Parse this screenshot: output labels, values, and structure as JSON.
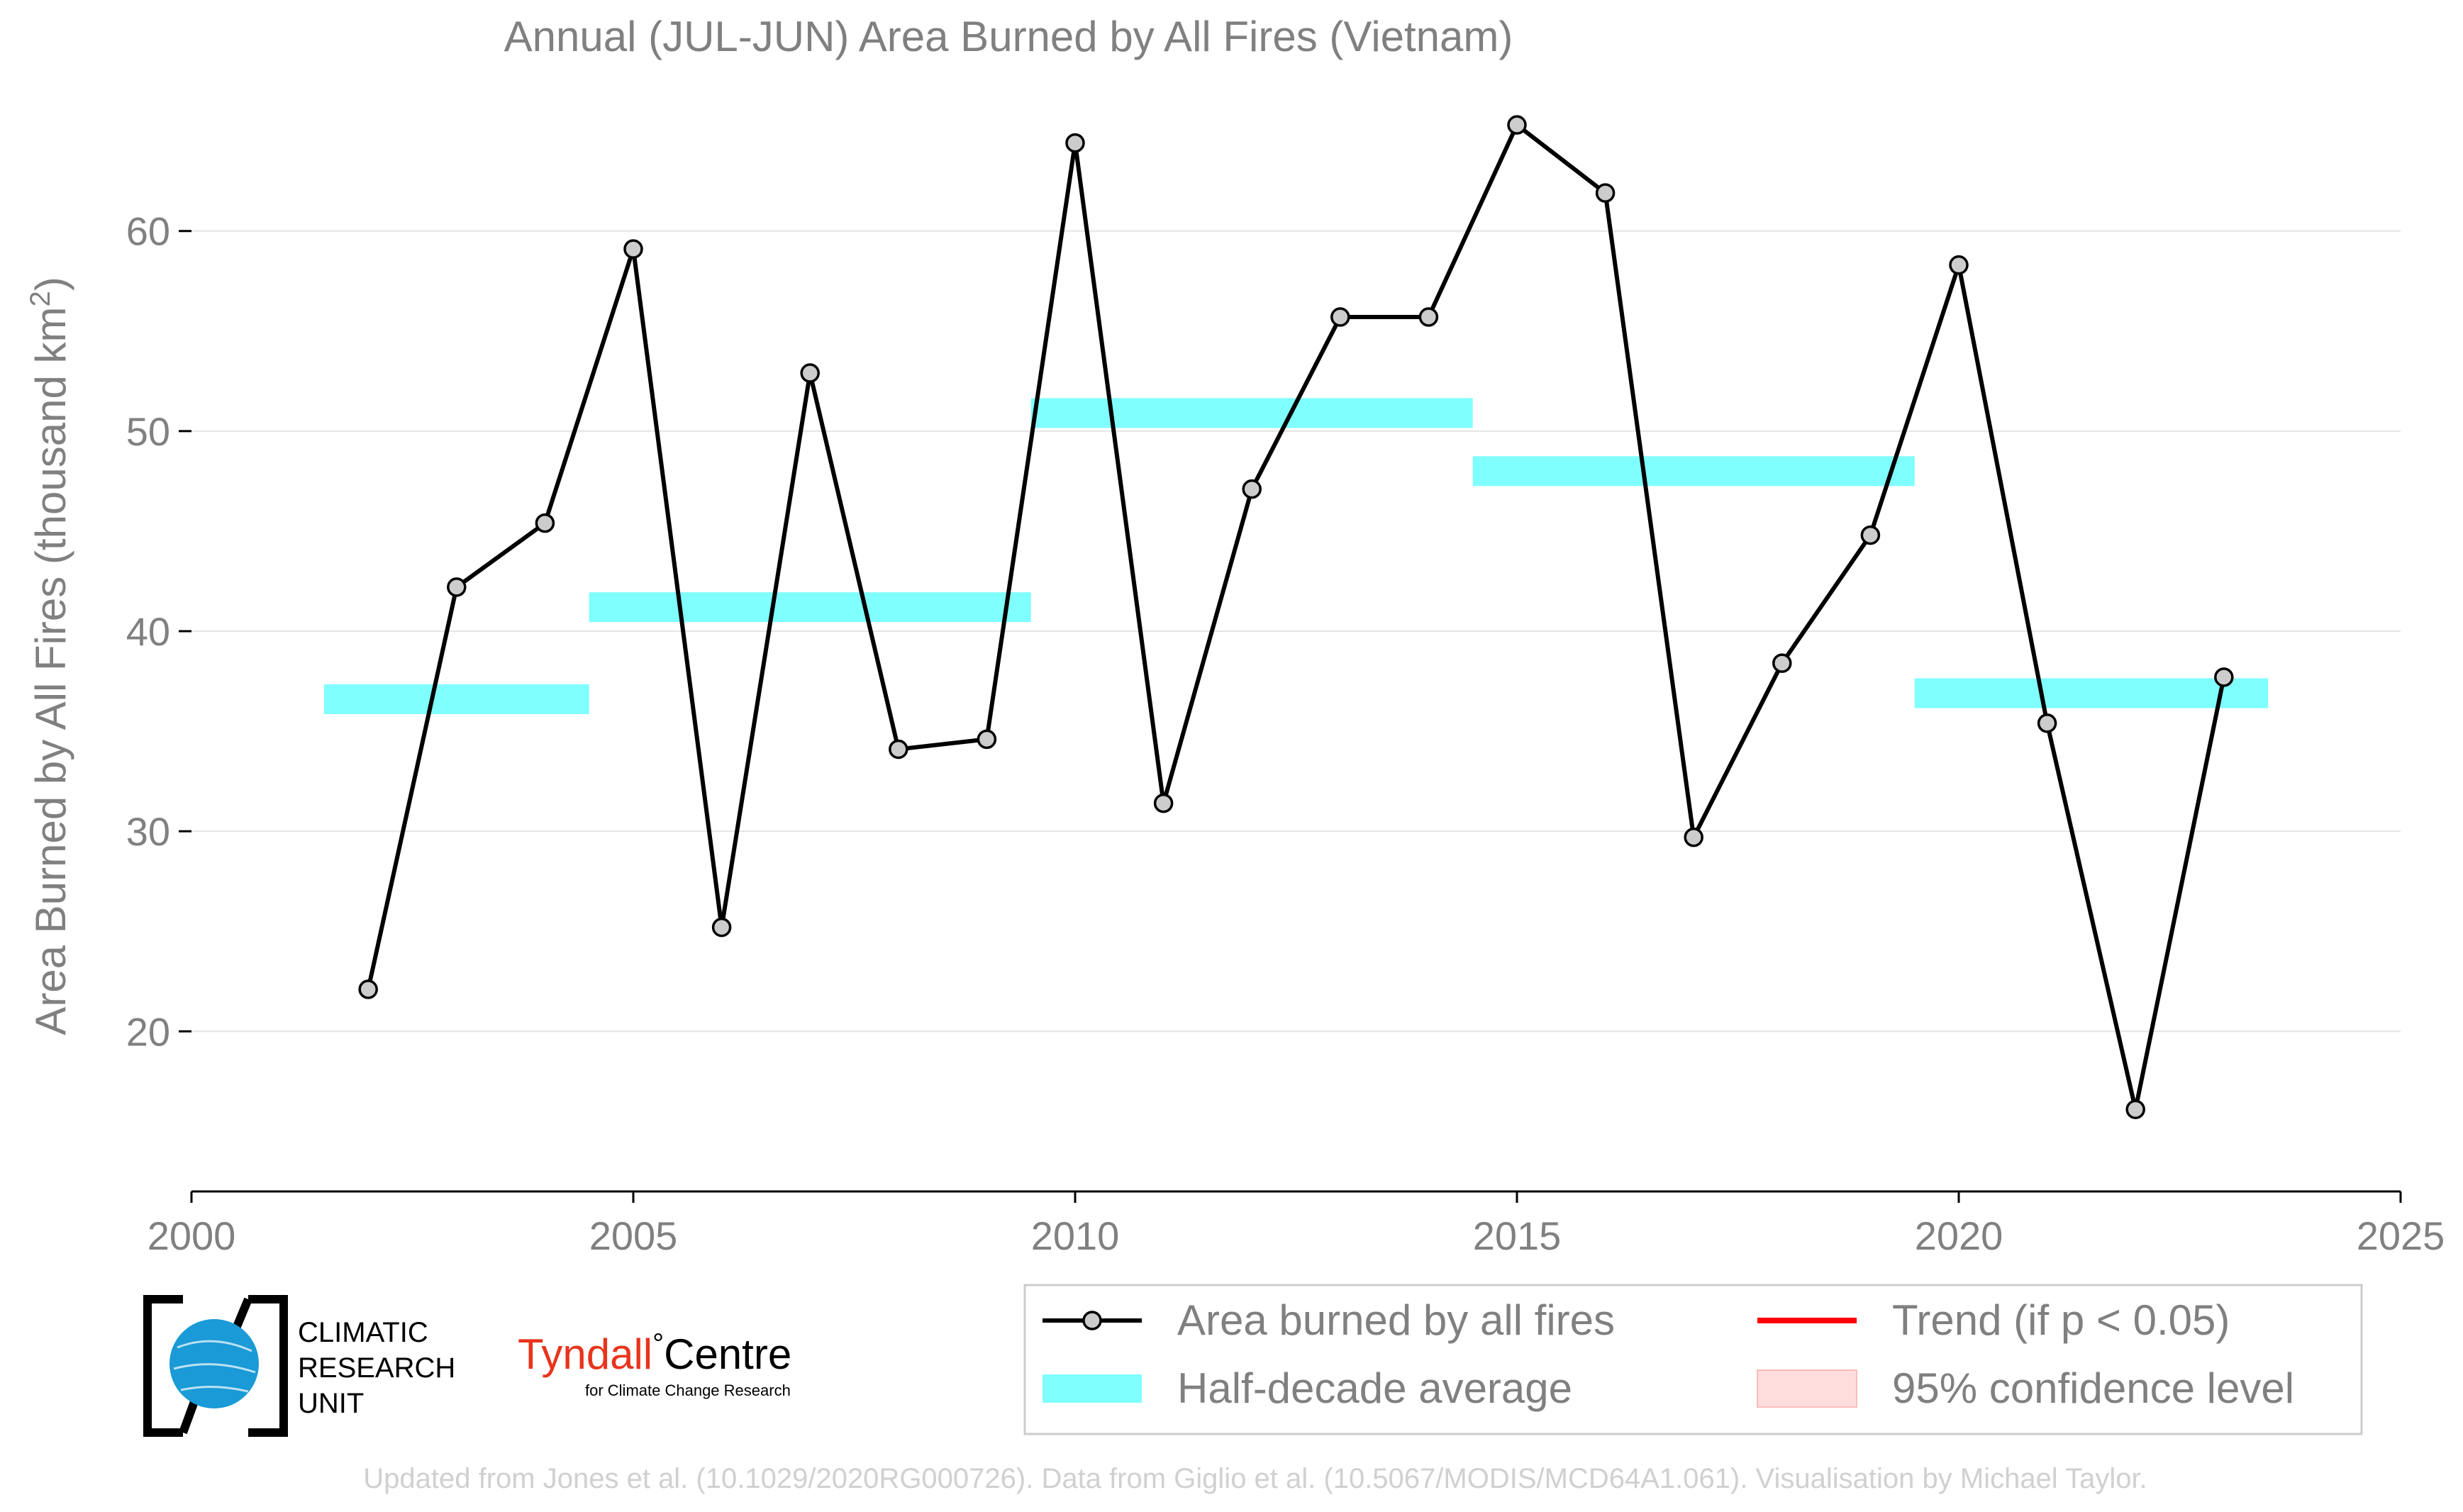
{
  "chart_data": {
    "type": "line",
    "title": "Annual (JUL-JUN) Area Burned by All Fires (Vietnam)",
    "ylabel": "Area Burned by All Fires (thousand km",
    "ylabel_sup": "2",
    "ylabel_close": ")",
    "xlim": [
      2000,
      2025
    ],
    "ylim": [
      12,
      68
    ],
    "x_ticks": [
      2000,
      2005,
      2010,
      2015,
      2020,
      2025
    ],
    "y_ticks": [
      20,
      30,
      40,
      50,
      60
    ],
    "grid": true,
    "series": [
      {
        "name": "Area burned by all fires",
        "x": [
          2002,
          2003,
          2004,
          2005,
          2006,
          2007,
          2008,
          2009,
          2010,
          2011,
          2012,
          2013,
          2014,
          2015,
          2016,
          2017,
          2018,
          2019,
          2020,
          2021,
          2022,
          2023
        ],
        "values": [
          22.1,
          42.2,
          45.4,
          59.1,
          25.2,
          52.9,
          34.1,
          34.6,
          64.4,
          31.4,
          47.1,
          55.7,
          55.7,
          65.3,
          61.9,
          29.7,
          38.4,
          44.8,
          58.3,
          35.4,
          16.1,
          37.7
        ],
        "color": "#000000",
        "marker_color": "#cccccc"
      }
    ],
    "half_decade_averages": {
      "name": "Half-decade average",
      "color": "#80ffff",
      "segments": [
        {
          "x_start": 2001.5,
          "x_end": 2004.5,
          "value": 36.6
        },
        {
          "x_start": 2004.5,
          "x_end": 2009.5,
          "value": 41.2
        },
        {
          "x_start": 2009.5,
          "x_end": 2014.5,
          "value": 50.9
        },
        {
          "x_start": 2014.5,
          "x_end": 2019.5,
          "value": 48.0
        },
        {
          "x_start": 2019.5,
          "x_end": 2023.5,
          "value": 36.9
        }
      ]
    },
    "legend": {
      "position": "bottom-right",
      "items": [
        {
          "label": "Area burned by all fires",
          "type": "line-marker",
          "color": "#000000"
        },
        {
          "label": "Trend (if p < 0.05)",
          "type": "line",
          "color": "#ff0000"
        },
        {
          "label": "Half-decade average",
          "type": "band",
          "color": "#80ffff"
        },
        {
          "label": "95% confidence level",
          "type": "band",
          "color": "#ffdddd"
        }
      ]
    },
    "credit": "Updated from Jones et al. (10.1029/2020RG000726). Data from Giglio et al. (10.5067/MODIS/MCD64A1.061). Visualisation by Michael Taylor."
  },
  "logos": {
    "cru": [
      "CLIMATIC",
      "RESEARCH",
      "UNIT"
    ],
    "tyndall_main": "Tyndall",
    "tyndall_degree": "°",
    "tyndall_centre": "Centre",
    "tyndall_sub": "for Climate Change Research",
    "tyndall_color": "#e8341c",
    "cru_globe_color": "#1a9ad6"
  }
}
